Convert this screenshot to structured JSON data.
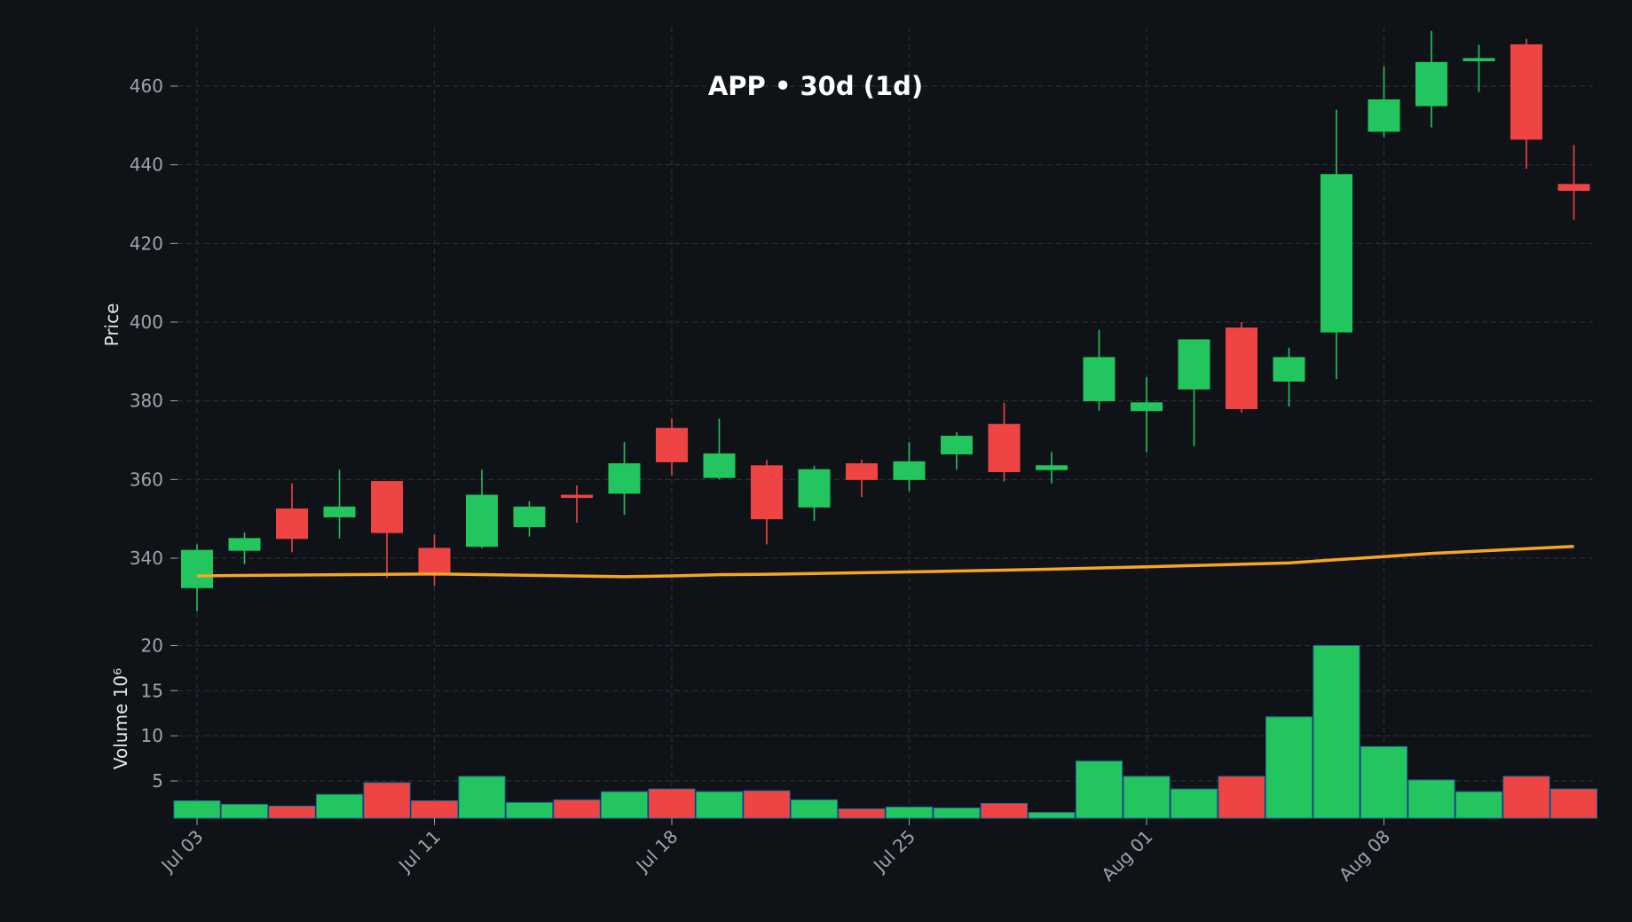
{
  "colors": {
    "background": "#0f1318",
    "grid": "#2a2f36",
    "text": "#e6e6e6",
    "tick_text": "#a0a5ab",
    "up": "#22c55e",
    "down": "#ef4444",
    "ma": "#f5a623",
    "volume_edge": "#1f6f9c"
  },
  "chart_data": {
    "type": "candlestick",
    "title": "APP • 30d (1d)",
    "ylabel": "Price",
    "volume_label": "Volume  10⁶",
    "price_ylim": [
      326,
      474
    ],
    "price_yticks": [
      "340",
      "360",
      "380",
      "400",
      "420",
      "440",
      "460"
    ],
    "volume_ylim": [
      0,
      22
    ],
    "volume_yticks": [
      "5",
      "10",
      "15",
      "20"
    ],
    "xtick_labels": [
      "Jul 03",
      "Jul 11",
      "Jul 18",
      "Jul 25",
      "Aug 01",
      "Aug 08"
    ],
    "xtick_index": [
      0,
      5,
      10,
      15,
      20,
      25
    ],
    "candles": [
      {
        "o": 332.5,
        "h": 343.5,
        "l": 326.5,
        "c": 342.0,
        "v": 2.8
      },
      {
        "o": 342.0,
        "h": 346.5,
        "l": 338.5,
        "c": 345.0,
        "v": 2.4
      },
      {
        "o": 352.5,
        "h": 359.0,
        "l": 341.5,
        "c": 345.0,
        "v": 2.2
      },
      {
        "o": 350.5,
        "h": 362.5,
        "l": 345.0,
        "c": 353.0,
        "v": 3.5
      },
      {
        "o": 359.5,
        "h": 359.5,
        "l": 335.0,
        "c": 346.5,
        "v": 4.8
      },
      {
        "o": 342.5,
        "h": 346.0,
        "l": 333.0,
        "c": 336.0,
        "v": 2.8
      },
      {
        "o": 343.0,
        "h": 362.5,
        "l": 342.5,
        "c": 356.0,
        "v": 5.5
      },
      {
        "o": 348.0,
        "h": 354.5,
        "l": 345.5,
        "c": 353.0,
        "v": 2.6
      },
      {
        "o": 356.0,
        "h": 358.5,
        "l": 349.0,
        "c": 355.5,
        "v": 2.9
      },
      {
        "o": 356.5,
        "h": 369.5,
        "l": 351.0,
        "c": 364.0,
        "v": 3.8
      },
      {
        "o": 373.0,
        "h": 375.5,
        "l": 361.0,
        "c": 364.5,
        "v": 4.1
      },
      {
        "o": 360.5,
        "h": 375.5,
        "l": 360.0,
        "c": 366.5,
        "v": 3.8
      },
      {
        "o": 363.5,
        "h": 365.0,
        "l": 343.5,
        "c": 350.0,
        "v": 3.9
      },
      {
        "o": 353.0,
        "h": 363.5,
        "l": 349.5,
        "c": 362.5,
        "v": 2.9
      },
      {
        "o": 364.0,
        "h": 365.0,
        "l": 355.5,
        "c": 360.0,
        "v": 1.9
      },
      {
        "o": 360.0,
        "h": 369.5,
        "l": 357.0,
        "c": 364.5,
        "v": 2.1
      },
      {
        "o": 366.5,
        "h": 372.0,
        "l": 362.5,
        "c": 371.0,
        "v": 2.0
      },
      {
        "o": 374.0,
        "h": 379.5,
        "l": 359.5,
        "c": 362.0,
        "v": 2.5
      },
      {
        "o": 362.5,
        "h": 367.0,
        "l": 359.0,
        "c": 363.5,
        "v": 1.5
      },
      {
        "o": 380.0,
        "h": 398.0,
        "l": 377.5,
        "c": 391.0,
        "v": 7.2
      },
      {
        "o": 377.5,
        "h": 386.0,
        "l": 367.0,
        "c": 379.5,
        "v": 5.5
      },
      {
        "o": 383.0,
        "h": 395.5,
        "l": 368.5,
        "c": 395.5,
        "v": 4.1
      },
      {
        "o": 398.5,
        "h": 400.0,
        "l": 377.0,
        "c": 378.0,
        "v": 5.5
      },
      {
        "o": 385.0,
        "h": 393.5,
        "l": 378.5,
        "c": 391.0,
        "v": 12.1
      },
      {
        "o": 397.5,
        "h": 454.0,
        "l": 385.5,
        "c": 437.5,
        "v": 20.0
      },
      {
        "o": 448.5,
        "h": 465.0,
        "l": 447.0,
        "c": 456.5,
        "v": 8.8
      },
      {
        "o": 455.0,
        "h": 474.0,
        "l": 449.5,
        "c": 466.0,
        "v": 5.1
      },
      {
        "o": 466.5,
        "h": 470.5,
        "l": 458.5,
        "c": 467.0,
        "v": 3.8
      },
      {
        "o": 470.5,
        "h": 472.0,
        "l": 439.0,
        "c": 446.5,
        "v": 5.5
      },
      {
        "o": 435.0,
        "h": 445.0,
        "l": 426.0,
        "c": 433.5,
        "v": 4.1
      }
    ],
    "moving_average": {
      "start_index": 0,
      "end_index": 29,
      "points": [
        [
          0,
          335.5
        ],
        [
          5,
          336.0
        ],
        [
          9,
          335.3
        ],
        [
          10,
          335.5
        ],
        [
          11,
          335.8
        ],
        [
          12,
          335.9
        ],
        [
          15,
          336.5
        ],
        [
          18,
          337.2
        ],
        [
          20,
          337.8
        ],
        [
          23,
          338.8
        ],
        [
          24,
          339.6
        ],
        [
          26,
          341.2
        ],
        [
          28,
          342.4
        ],
        [
          29,
          343.0
        ]
      ]
    }
  }
}
